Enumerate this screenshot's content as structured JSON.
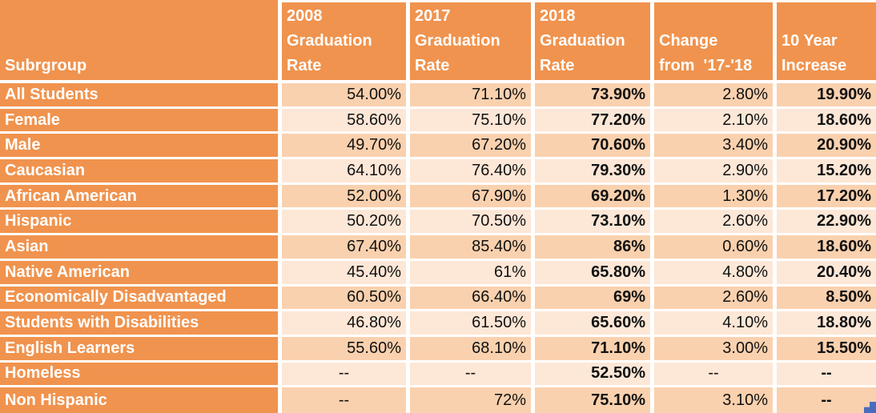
{
  "table": {
    "header": {
      "subgroup": "Subrgroup",
      "col_2008": "2008\nGraduation\nRate",
      "col_2017": "2017\nGraduation\nRate",
      "col_2018": "2018\nGraduation\nRate",
      "col_change": "Change\nfrom  '17-'18",
      "col_10yr": "10 Year\nIncrease"
    },
    "rows": [
      {
        "subgroup": "All Students",
        "rate_2008": "54.00%",
        "rate_2017": "71.10%",
        "rate_2018": "73.90%",
        "change_17_18": "2.80%",
        "ten_year_increase": "19.90%"
      },
      {
        "subgroup": "Female",
        "rate_2008": "58.60%",
        "rate_2017": "75.10%",
        "rate_2018": "77.20%",
        "change_17_18": "2.10%",
        "ten_year_increase": "18.60%"
      },
      {
        "subgroup": "Male",
        "rate_2008": "49.70%",
        "rate_2017": "67.20%",
        "rate_2018": "70.60%",
        "change_17_18": "3.40%",
        "ten_year_increase": "20.90%"
      },
      {
        "subgroup": "Caucasian",
        "rate_2008": "64.10%",
        "rate_2017": "76.40%",
        "rate_2018": "79.30%",
        "change_17_18": "2.90%",
        "ten_year_increase": "15.20%"
      },
      {
        "subgroup": "African American",
        "rate_2008": "52.00%",
        "rate_2017": "67.90%",
        "rate_2018": "69.20%",
        "change_17_18": "1.30%",
        "ten_year_increase": "17.20%"
      },
      {
        "subgroup": "Hispanic",
        "rate_2008": "50.20%",
        "rate_2017": "70.50%",
        "rate_2018": "73.10%",
        "change_17_18": "2.60%",
        "ten_year_increase": "22.90%"
      },
      {
        "subgroup": "Asian",
        "rate_2008": "67.40%",
        "rate_2017": "85.40%",
        "rate_2018": "86%",
        "change_17_18": "0.60%",
        "ten_year_increase": "18.60%"
      },
      {
        "subgroup": "Native American",
        "rate_2008": "45.40%",
        "rate_2017": "61%",
        "rate_2018": "65.80%",
        "change_17_18": "4.80%",
        "ten_year_increase": "20.40%"
      },
      {
        "subgroup": "Economically Disadvantaged",
        "rate_2008": "60.50%",
        "rate_2017": "66.40%",
        "rate_2018": "69%",
        "change_17_18": "2.60%",
        "ten_year_increase": "8.50%"
      },
      {
        "subgroup": "Students with Disabilities",
        "rate_2008": "46.80%",
        "rate_2017": "61.50%",
        "rate_2018": "65.60%",
        "change_17_18": "4.10%",
        "ten_year_increase": "18.80%"
      },
      {
        "subgroup": "English Learners",
        "rate_2008": "55.60%",
        "rate_2017": "68.10%",
        "rate_2018": "71.10%",
        "change_17_18": "3.00%",
        "ten_year_increase": "15.50%"
      },
      {
        "subgroup": "Homeless",
        "rate_2008": "--",
        "rate_2017": "--",
        "rate_2018": "52.50%",
        "change_17_18": "--",
        "ten_year_increase": "--"
      },
      {
        "subgroup": "Non Hispanic",
        "rate_2008": "--",
        "rate_2017": "72%",
        "rate_2018": "75.10%",
        "change_17_18": "3.10%",
        "ten_year_increase": "--"
      }
    ]
  },
  "colors": {
    "header_orange": "#F0934E",
    "row_band_dark": "#FAD1AE",
    "row_band_light": "#FDE7D7",
    "gridline": "#FFFFFF",
    "header_text": "#FFFFFF",
    "data_text": "#111111",
    "fill_handle_blue": "#4A6CBD"
  },
  "icons": {
    "fill_handle": "blue-step-resize-handle"
  }
}
